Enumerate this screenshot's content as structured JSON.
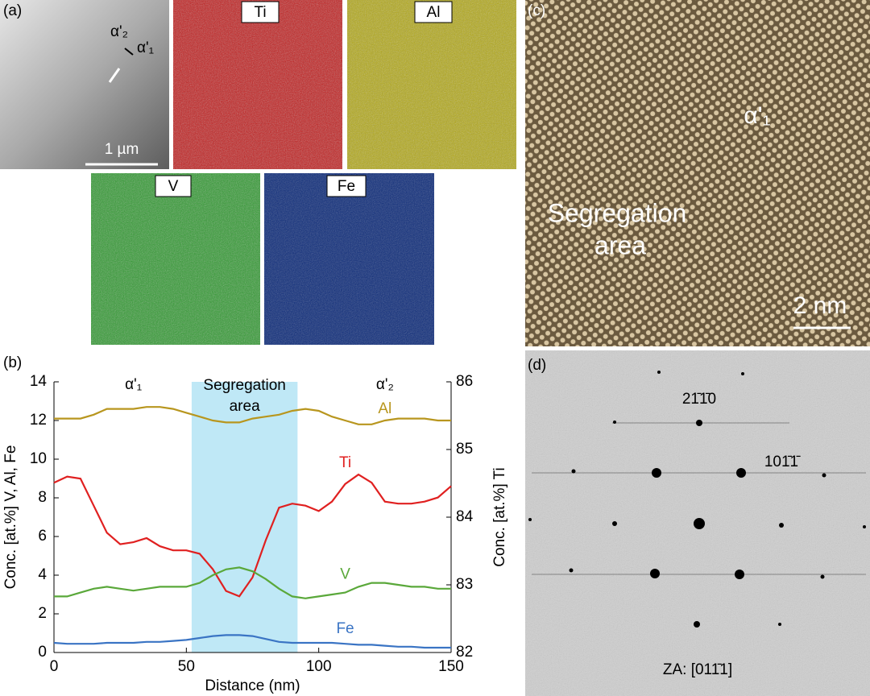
{
  "panel_a": {
    "label": "(a)",
    "phases": [
      "α'₂",
      "α'₁"
    ],
    "scale_bar": "1 µm",
    "maps": [
      "Ti",
      "Al",
      "V",
      "Fe"
    ]
  },
  "panel_c": {
    "label": "(c)",
    "region": [
      "Segregation",
      "area"
    ],
    "phase": "α'₁",
    "scale_bar": "2 nm"
  },
  "panel_d": {
    "label": "(d)",
    "spots": [
      "21̄1̄0",
      "101̄1̄"
    ],
    "zone_axis": "ZA: [011̄1]"
  },
  "chart_data": {
    "type": "line",
    "label": "(b)",
    "x_label": "Distance (nm)",
    "y_label": "Conc. [at.%] V, Al, Fe",
    "y2_label": "Conc. [at.%] Ti",
    "xlim": [
      0,
      150
    ],
    "xticks": [
      0,
      50,
      100,
      150
    ],
    "ylim": [
      0,
      14
    ],
    "yticks": [
      0,
      2,
      4,
      6,
      8,
      10,
      12,
      14
    ],
    "y2lim": [
      82,
      86
    ],
    "y2ticks": [
      82,
      83,
      84,
      85,
      86
    ],
    "highlight": {
      "range": [
        52,
        92
      ],
      "label": [
        "Segregation",
        "area"
      ]
    },
    "phases": [
      "α'₁",
      "α'₂"
    ],
    "x": [
      0,
      5,
      10,
      15,
      20,
      25,
      30,
      35,
      40,
      45,
      50,
      55,
      60,
      65,
      70,
      75,
      80,
      85,
      90,
      95,
      100,
      105,
      110,
      115,
      120,
      125,
      130,
      135,
      140,
      145,
      150
    ],
    "series": [
      {
        "name": "Al",
        "color": "#b8961e",
        "values": [
          12.1,
          12.1,
          12.1,
          12.3,
          12.6,
          12.6,
          12.6,
          12.7,
          12.7,
          12.6,
          12.4,
          12.2,
          12.0,
          11.9,
          11.9,
          12.1,
          12.2,
          12.3,
          12.5,
          12.6,
          12.5,
          12.2,
          12.0,
          11.8,
          11.8,
          12.0,
          12.1,
          12.1,
          12.1,
          12.0,
          12.0
        ]
      },
      {
        "name": "Ti",
        "color": "#e02020",
        "axis": "y2",
        "values": [
          84.51,
          84.6,
          84.57,
          84.17,
          83.77,
          83.6,
          83.63,
          83.69,
          83.57,
          83.51,
          83.51,
          83.46,
          83.23,
          82.91,
          82.83,
          83.11,
          83.66,
          84.14,
          84.2,
          84.17,
          84.09,
          84.23,
          84.49,
          84.63,
          84.51,
          84.23,
          84.2,
          84.2,
          84.23,
          84.29,
          84.46
        ]
      },
      {
        "name": "V",
        "color": "#5aa83a",
        "values": [
          2.9,
          2.9,
          3.1,
          3.3,
          3.4,
          3.3,
          3.2,
          3.3,
          3.4,
          3.4,
          3.4,
          3.6,
          4.0,
          4.3,
          4.4,
          4.2,
          3.8,
          3.3,
          2.9,
          2.8,
          2.9,
          3.0,
          3.1,
          3.4,
          3.6,
          3.6,
          3.5,
          3.4,
          3.4,
          3.3,
          3.3
        ]
      },
      {
        "name": "Fe",
        "color": "#3a74c4",
        "values": [
          0.5,
          0.45,
          0.45,
          0.45,
          0.5,
          0.5,
          0.5,
          0.55,
          0.55,
          0.6,
          0.65,
          0.75,
          0.85,
          0.9,
          0.9,
          0.85,
          0.7,
          0.55,
          0.5,
          0.5,
          0.5,
          0.5,
          0.45,
          0.4,
          0.4,
          0.35,
          0.3,
          0.3,
          0.25,
          0.25,
          0.25
        ]
      }
    ]
  }
}
